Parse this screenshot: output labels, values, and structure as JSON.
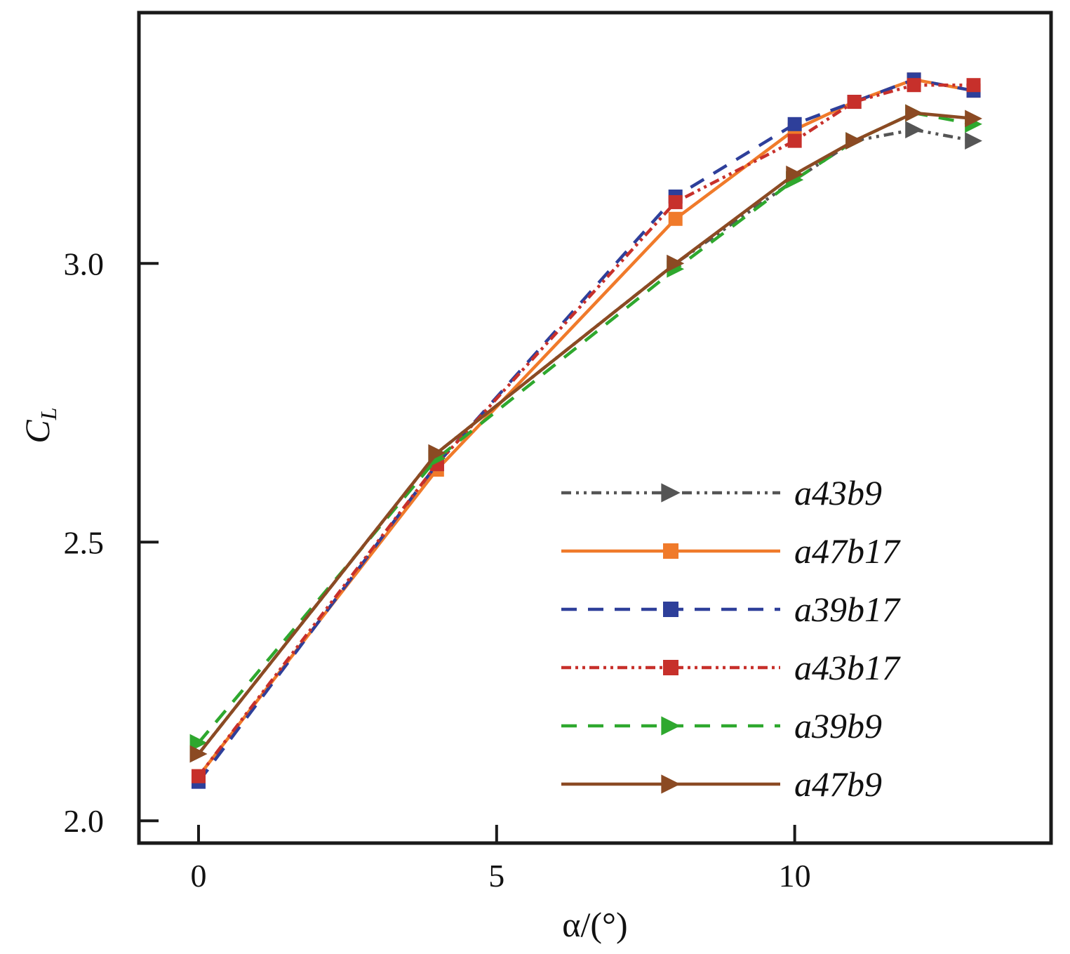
{
  "chart_data": {
    "type": "line",
    "xlabel": "α/(°)",
    "ylabel": "C_L",
    "ylabel_main": "C",
    "ylabel_sub": "L",
    "xlim": [
      -1,
      14.3
    ],
    "ylim": [
      1.96,
      3.45
    ],
    "xticks": [
      0,
      5,
      10
    ],
    "xtick_labels": [
      "0",
      "5",
      "10"
    ],
    "yticks": [
      2.0,
      2.5,
      3.0
    ],
    "ytick_labels": [
      "2.0",
      "2.5",
      "3.0"
    ],
    "grid": false,
    "legend_position": "bottom-right",
    "x": [
      0,
      4,
      8,
      10,
      11,
      12,
      13
    ],
    "series": [
      {
        "name": "a43b9",
        "color": "#555555",
        "dash": "14,7,4,7,4,7",
        "marker": "triangle-right",
        "values": [
          2.12,
          2.66,
          3.0,
          3.15,
          3.22,
          3.24,
          3.22
        ]
      },
      {
        "name": "a47b17",
        "color": "#F07A2A",
        "dash": "",
        "marker": "square",
        "values": [
          2.08,
          2.63,
          3.08,
          3.24,
          3.29,
          3.33,
          3.31
        ]
      },
      {
        "name": "a39b17",
        "color": "#2E3F9A",
        "dash": "22,16",
        "marker": "square",
        "values": [
          2.07,
          2.64,
          3.12,
          3.25,
          3.29,
          3.33,
          3.31
        ]
      },
      {
        "name": "a43b17",
        "color": "#C7302B",
        "dash": "14,6,4,6,4,6",
        "marker": "square",
        "values": [
          2.08,
          2.64,
          3.11,
          3.22,
          3.29,
          3.32,
          3.32
        ]
      },
      {
        "name": "a39b9",
        "color": "#2EA82E",
        "dash": "22,16",
        "marker": "triangle-right",
        "values": [
          2.14,
          2.65,
          2.99,
          3.15,
          3.22,
          3.27,
          3.25
        ]
      },
      {
        "name": "a47b9",
        "color": "#8B4A23",
        "dash": "",
        "marker": "triangle-right",
        "values": [
          2.12,
          2.66,
          3.0,
          3.16,
          3.22,
          3.27,
          3.26
        ]
      }
    ]
  }
}
